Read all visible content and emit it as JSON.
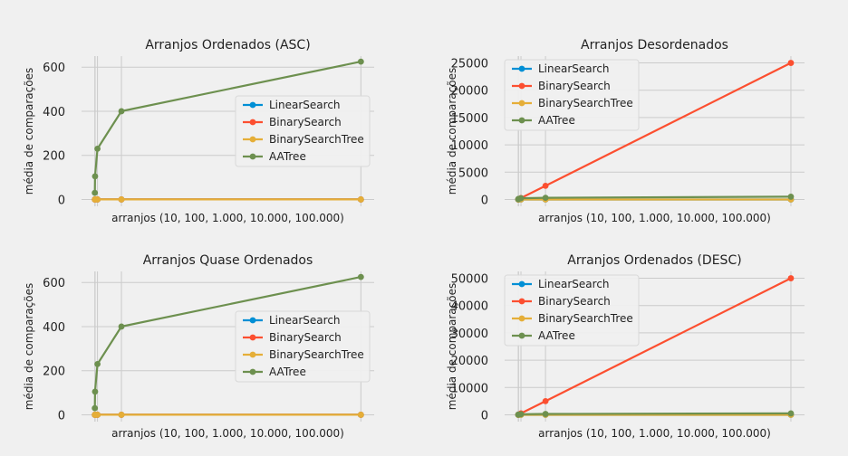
{
  "chart_data": [
    {
      "type": "line",
      "title": "Arranjos Ordenados (ASC)",
      "xlabel": "arranjos (10, 100, 1.000, 10.000, 100.000)",
      "ylabel": "média de comparações",
      "x": [
        10,
        100,
        1000,
        10000,
        100000
      ],
      "xlim": [
        -4990,
        104990
      ],
      "ylim": [
        -31,
        650
      ],
      "yticks": [
        0,
        200,
        400,
        600
      ],
      "ytick_labels": [
        "0",
        "200",
        "400",
        "600"
      ],
      "grid": true,
      "legend": "center-right",
      "series": [
        {
          "name": "LinearSearch",
          "color": "#008fd5",
          "values": [
            0,
            0,
            0,
            0,
            0
          ]
        },
        {
          "name": "BinarySearch",
          "color": "#fc4f30",
          "values": [
            0,
            0,
            0,
            0,
            0
          ]
        },
        {
          "name": "BinarySearchTree",
          "color": "#e5ae38",
          "values": [
            0,
            0,
            0,
            0,
            0
          ]
        },
        {
          "name": "AATree",
          "color": "#6d904f",
          "values": [
            30,
            105,
            230,
            400,
            625
          ]
        }
      ]
    },
    {
      "type": "line",
      "title": "Arranjos Desordenados",
      "xlabel": "arranjos (10, 100, 1.000, 10.000, 100.000)",
      "ylabel": "média de comparações",
      "x": [
        10,
        100,
        1000,
        10000,
        100000
      ],
      "xlim": [
        -4990,
        104990
      ],
      "ylim": [
        -1250,
        26250
      ],
      "yticks": [
        0,
        5000,
        10000,
        15000,
        20000,
        25000
      ],
      "ytick_labels": [
        "0",
        "5000",
        "10000",
        "15000",
        "20000",
        "25000"
      ],
      "grid": true,
      "legend": "upper-left",
      "series": [
        {
          "name": "LinearSearch",
          "color": "#008fd5",
          "values": [
            0,
            0,
            0,
            0,
            0
          ]
        },
        {
          "name": "BinarySearch",
          "color": "#fc4f30",
          "values": [
            5,
            50,
            250,
            2500,
            25000
          ]
        },
        {
          "name": "BinarySearchTree",
          "color": "#e5ae38",
          "values": [
            0,
            0,
            0,
            0,
            0
          ]
        },
        {
          "name": "AATree",
          "color": "#6d904f",
          "values": [
            30,
            105,
            230,
            300,
            500
          ]
        }
      ]
    },
    {
      "type": "line",
      "title": "Arranjos Quase Ordenados",
      "xlabel": "arranjos (10, 100, 1.000, 10.000, 100.000)",
      "ylabel": "média de comparações",
      "x": [
        10,
        100,
        1000,
        10000,
        100000
      ],
      "xlim": [
        -4990,
        104990
      ],
      "ylim": [
        -31,
        650
      ],
      "yticks": [
        0,
        200,
        400,
        600
      ],
      "ytick_labels": [
        "0",
        "200",
        "400",
        "600"
      ],
      "grid": true,
      "legend": "center-right",
      "series": [
        {
          "name": "LinearSearch",
          "color": "#008fd5",
          "values": [
            0,
            0,
            0,
            0,
            0
          ]
        },
        {
          "name": "BinarySearch",
          "color": "#fc4f30",
          "values": [
            0,
            0,
            0,
            0,
            0
          ]
        },
        {
          "name": "BinarySearchTree",
          "color": "#e5ae38",
          "values": [
            0,
            0,
            0,
            0,
            0
          ]
        },
        {
          "name": "AATree",
          "color": "#6d904f",
          "values": [
            30,
            105,
            230,
            400,
            625
          ]
        }
      ]
    },
    {
      "type": "line",
      "title": "Arranjos Ordenados (DESC)",
      "xlabel": "arranjos (10, 100, 1.000, 10.000, 100.000)",
      "ylabel": "média de comparações",
      "x": [
        10,
        100,
        1000,
        10000,
        100000
      ],
      "xlim": [
        -4990,
        104990
      ],
      "ylim": [
        -2500,
        52500
      ],
      "yticks": [
        0,
        10000,
        20000,
        30000,
        40000,
        50000
      ],
      "ytick_labels": [
        "0",
        "10000",
        "20000",
        "30000",
        "40000",
        "50000"
      ],
      "grid": true,
      "legend": "upper-left",
      "series": [
        {
          "name": "LinearSearch",
          "color": "#008fd5",
          "values": [
            0,
            0,
            0,
            0,
            0
          ]
        },
        {
          "name": "BinarySearch",
          "color": "#fc4f30",
          "values": [
            10,
            100,
            500,
            5000,
            50000
          ]
        },
        {
          "name": "BinarySearchTree",
          "color": "#e5ae38",
          "values": [
            0,
            0,
            0,
            0,
            0
          ]
        },
        {
          "name": "AATree",
          "color": "#6d904f",
          "values": [
            30,
            105,
            230,
            300,
            500
          ]
        }
      ]
    }
  ]
}
